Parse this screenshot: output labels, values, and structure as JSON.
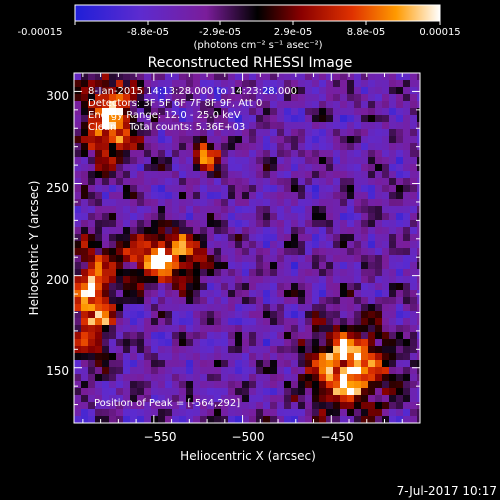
{
  "colorbar": {
    "tick_labels": [
      "-0.00015",
      "-8.8e-05",
      "-2.9e-05",
      "2.9e-05",
      "8.8e-05",
      "0.00015"
    ],
    "unit_label": "(photons cm⁻² s⁻¹ asec⁻²)",
    "vmin": -0.00015,
    "vmax": 0.00015
  },
  "title": "Reconstructed RHESSI Image",
  "info": {
    "line1": "8-Jan-2015 14:13:28.000 to 14:23:28.000",
    "line2": "Detectors: 3F 5F 6F 7F 8F 9F, Att 0",
    "line3": "Energy Range: 12.0 - 25.0 keV",
    "line4": "Clean    Total counts: 5.36E+03"
  },
  "peak_label": "Position of Peak = [-564,292]",
  "axes": {
    "xlabel": "Heliocentric X (arcsec)",
    "ylabel": "Heliocentric Y (arcsec)",
    "x_range": [
      -595,
      -400
    ],
    "y_range": [
      120,
      310
    ],
    "x_ticks": [
      -550,
      -500,
      -450
    ],
    "y_ticks": [
      150,
      200,
      250,
      300
    ],
    "x_tick_labels": [
      "−550",
      "−500",
      "−450"
    ],
    "y_tick_labels": [
      "150",
      "200",
      "250",
      "300"
    ]
  },
  "date_stamp": "7-Jul-2017 10:17",
  "chart_data": {
    "type": "heatmap",
    "title": "Reconstructed RHESSI Image",
    "xlabel": "Heliocentric X (arcsec)",
    "ylabel": "Heliocentric Y (arcsec)",
    "xlim": [
      -595,
      -400
    ],
    "ylim": [
      120,
      310
    ],
    "x_ticks": [
      -550,
      -500,
      -450
    ],
    "y_ticks": [
      150,
      200,
      250,
      300
    ],
    "colorbar_range": [
      -0.00015,
      0.00015
    ],
    "peak_position": [
      -564,
      292
    ],
    "bright_regions": [
      {
        "center": [
          -575,
          285
        ],
        "extent": [
          15,
          25
        ]
      },
      {
        "center": [
          -545,
          210
        ],
        "extent": [
          25,
          15
        ]
      },
      {
        "center": [
          -585,
          185
        ],
        "extent": [
          12,
          30
        ]
      },
      {
        "center": [
          -440,
          150
        ],
        "extent": [
          25,
          25
        ]
      },
      {
        "center": [
          -520,
          265
        ],
        "extent": [
          8,
          8
        ]
      }
    ]
  }
}
